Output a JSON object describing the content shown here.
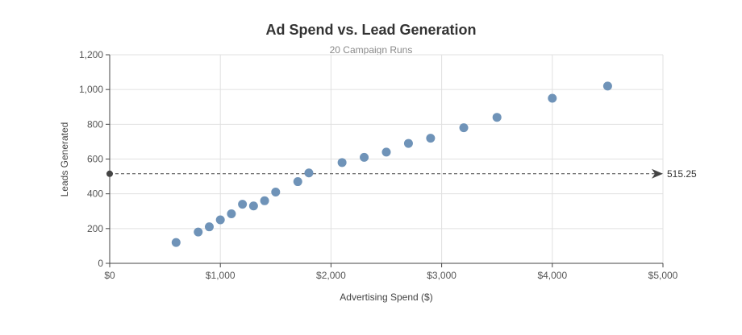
{
  "chart_data": {
    "type": "scatter",
    "title": "Ad Spend vs. Lead Generation",
    "subtitle": "20 Campaign Runs",
    "xlabel": "Advertising Spend ($)",
    "ylabel": "Leads Generated",
    "xlim": [
      0,
      5000
    ],
    "ylim": [
      0,
      1200
    ],
    "x_ticks": [
      0,
      1000,
      2000,
      3000,
      4000,
      5000
    ],
    "x_tick_labels": [
      "$0",
      "$1,000",
      "$2,000",
      "$3,000",
      "$4,000",
      "$5,000"
    ],
    "y_ticks": [
      0,
      200,
      400,
      600,
      800,
      1000,
      1200
    ],
    "y_tick_labels": [
      "0",
      "200",
      "400",
      "600",
      "800",
      "1,000",
      "1,200"
    ],
    "grid": true,
    "point_color": "#6f93b8",
    "points": [
      {
        "x": 600,
        "y": 120
      },
      {
        "x": 800,
        "y": 180
      },
      {
        "x": 900,
        "y": 210
      },
      {
        "x": 1000,
        "y": 250
      },
      {
        "x": 1100,
        "y": 285
      },
      {
        "x": 1200,
        "y": 340
      },
      {
        "x": 1300,
        "y": 330
      },
      {
        "x": 1400,
        "y": 360
      },
      {
        "x": 1500,
        "y": 410
      },
      {
        "x": 1700,
        "y": 470
      },
      {
        "x": 1800,
        "y": 520
      },
      {
        "x": 2100,
        "y": 580
      },
      {
        "x": 2300,
        "y": 610
      },
      {
        "x": 2500,
        "y": 640
      },
      {
        "x": 2700,
        "y": 690
      },
      {
        "x": 2900,
        "y": 720
      },
      {
        "x": 3200,
        "y": 780
      },
      {
        "x": 3500,
        "y": 840
      },
      {
        "x": 4000,
        "y": 950
      },
      {
        "x": 4500,
        "y": 1020
      }
    ],
    "reference_line": {
      "y": 515.25,
      "label": "515.25",
      "color": "#444444"
    }
  }
}
